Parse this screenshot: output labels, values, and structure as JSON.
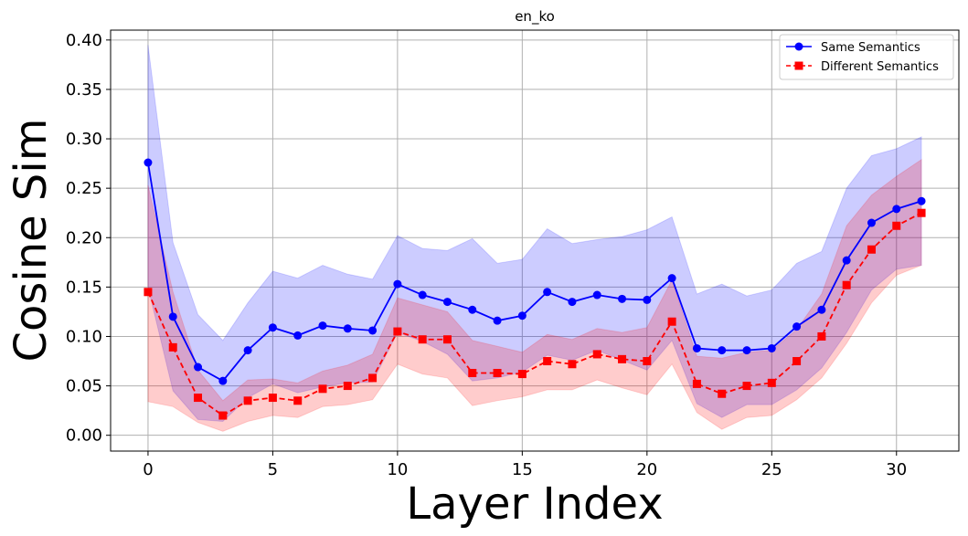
{
  "chart_data": {
    "type": "line",
    "title": "en_ko",
    "xlabel": "Layer Index",
    "ylabel": "Cosine Sim",
    "xlim": [
      -1.5,
      32.5
    ],
    "ylim": [
      -0.016,
      0.41
    ],
    "xticks": [
      0,
      5,
      10,
      15,
      20,
      25,
      30
    ],
    "yticks": [
      0.0,
      0.05,
      0.1,
      0.15,
      0.2,
      0.25,
      0.3,
      0.35,
      0.4
    ],
    "xtick_labels": [
      "0",
      "5",
      "10",
      "15",
      "20",
      "25",
      "30"
    ],
    "ytick_labels": [
      "0.00",
      "0.05",
      "0.10",
      "0.15",
      "0.20",
      "0.25",
      "0.30",
      "0.35",
      "0.40"
    ],
    "grid": true,
    "legend_position": "top-right",
    "x": [
      0,
      1,
      2,
      3,
      4,
      5,
      6,
      7,
      8,
      9,
      10,
      11,
      12,
      13,
      14,
      15,
      16,
      17,
      18,
      19,
      20,
      21,
      22,
      23,
      24,
      25,
      26,
      27,
      28,
      29,
      30,
      31
    ],
    "series": [
      {
        "name": "Same Semantics",
        "color": "#0000ff",
        "marker": "circle",
        "linestyle": "solid",
        "values": [
          0.276,
          0.12,
          0.069,
          0.055,
          0.086,
          0.109,
          0.101,
          0.111,
          0.108,
          0.106,
          0.153,
          0.142,
          0.135,
          0.127,
          0.116,
          0.121,
          0.145,
          0.135,
          0.142,
          0.138,
          0.137,
          0.159,
          0.088,
          0.086,
          0.086,
          0.088,
          0.11,
          0.127,
          0.177,
          0.215,
          0.229,
          0.237
        ],
        "upper": [
          0.395,
          0.195,
          0.122,
          0.096,
          0.134,
          0.166,
          0.159,
          0.172,
          0.163,
          0.158,
          0.202,
          0.189,
          0.187,
          0.199,
          0.174,
          0.178,
          0.209,
          0.194,
          0.198,
          0.201,
          0.208,
          0.221,
          0.143,
          0.153,
          0.141,
          0.147,
          0.174,
          0.186,
          0.25,
          0.283,
          0.29,
          0.302
        ],
        "lower": [
          0.15,
          0.045,
          0.016,
          0.014,
          0.038,
          0.052,
          0.043,
          0.049,
          0.053,
          0.054,
          0.104,
          0.095,
          0.082,
          0.055,
          0.058,
          0.064,
          0.081,
          0.076,
          0.086,
          0.076,
          0.066,
          0.096,
          0.032,
          0.018,
          0.031,
          0.031,
          0.046,
          0.068,
          0.104,
          0.147,
          0.168,
          0.172
        ]
      },
      {
        "name": "Different Semantics",
        "color": "#ff0000",
        "marker": "square",
        "linestyle": "dashed",
        "values": [
          0.145,
          0.089,
          0.038,
          0.02,
          0.035,
          0.038,
          0.035,
          0.047,
          0.05,
          0.058,
          0.105,
          0.097,
          0.097,
          0.063,
          0.063,
          0.062,
          0.075,
          0.072,
          0.082,
          0.077,
          0.075,
          0.115,
          0.052,
          0.042,
          0.05,
          0.053,
          0.075,
          0.1,
          0.152,
          0.188,
          0.212,
          0.225
        ],
        "upper": [
          0.253,
          0.145,
          0.066,
          0.035,
          0.056,
          0.057,
          0.053,
          0.065,
          0.071,
          0.082,
          0.139,
          0.132,
          0.125,
          0.096,
          0.09,
          0.084,
          0.102,
          0.097,
          0.108,
          0.104,
          0.109,
          0.157,
          0.08,
          0.078,
          0.084,
          0.086,
          0.107,
          0.143,
          0.212,
          0.243,
          0.262,
          0.279
        ],
        "lower": [
          0.034,
          0.029,
          0.013,
          0.004,
          0.014,
          0.02,
          0.018,
          0.029,
          0.031,
          0.036,
          0.072,
          0.062,
          0.058,
          0.03,
          0.035,
          0.039,
          0.046,
          0.046,
          0.056,
          0.048,
          0.041,
          0.072,
          0.023,
          0.006,
          0.018,
          0.02,
          0.036,
          0.058,
          0.093,
          0.134,
          0.162,
          0.172
        ]
      }
    ]
  }
}
